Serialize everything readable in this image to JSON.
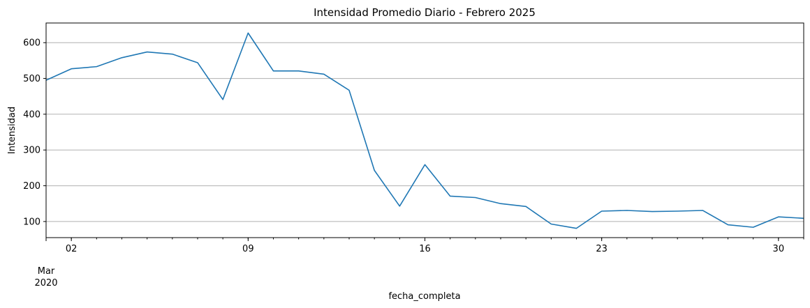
{
  "chart_data": {
    "type": "line",
    "title": "Intensidad Promedio Diario - Febrero 2025",
    "xlabel": "fecha_completa",
    "ylabel": "Intensidad",
    "x_axis": {
      "kind": "date",
      "range": [
        "2020-03-01",
        "2020-03-31"
      ],
      "major_ticks": [
        {
          "date": "2020-03-02",
          "label": "02"
        },
        {
          "date": "2020-03-09",
          "label": "09"
        },
        {
          "date": "2020-03-16",
          "label": "16"
        },
        {
          "date": "2020-03-23",
          "label": "23"
        },
        {
          "date": "2020-03-30",
          "label": "30"
        }
      ],
      "month_label": "Mar",
      "year_label": "2020"
    },
    "ylim": [
      55,
      655
    ],
    "yticks": [
      100,
      200,
      300,
      400,
      500,
      600
    ],
    "grid": "y-only",
    "color": "#1f77b4",
    "series": [
      {
        "x": [
          "2020-03-01",
          "2020-03-02",
          "2020-03-03",
          "2020-03-04",
          "2020-03-05",
          "2020-03-06",
          "2020-03-07",
          "2020-03-08",
          "2020-03-09",
          "2020-03-10",
          "2020-03-11",
          "2020-03-12",
          "2020-03-13",
          "2020-03-14",
          "2020-03-15",
          "2020-03-16",
          "2020-03-17",
          "2020-03-18",
          "2020-03-19",
          "2020-03-20",
          "2020-03-21",
          "2020-03-22",
          "2020-03-23",
          "2020-03-24",
          "2020-03-25",
          "2020-03-26",
          "2020-03-27",
          "2020-03-28",
          "2020-03-29",
          "2020-03-30",
          "2020-03-31"
        ],
        "values": [
          495,
          527,
          533,
          558,
          574,
          568,
          544,
          441,
          627,
          521,
          521,
          512,
          467,
          243,
          143,
          259,
          171,
          167,
          150,
          142,
          93,
          81,
          129,
          131,
          128,
          129,
          131,
          91,
          84,
          113,
          109
        ]
      }
    ]
  }
}
